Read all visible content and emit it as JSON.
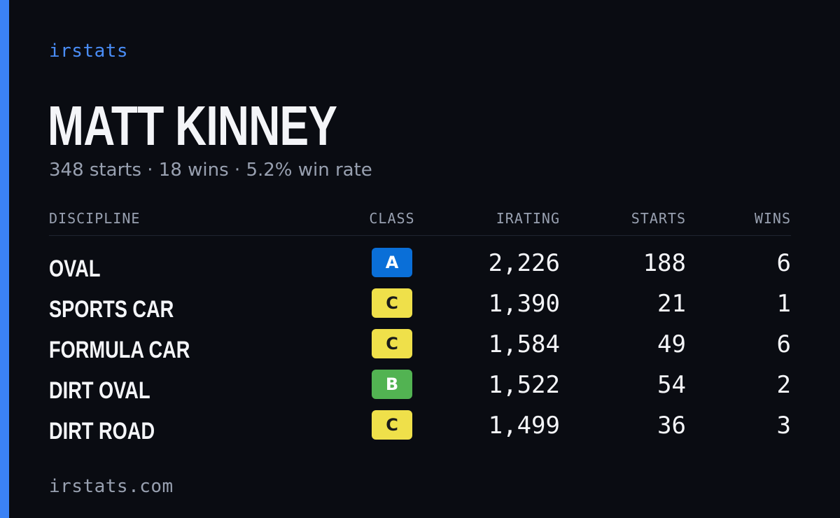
{
  "brand": "irstats",
  "driver": {
    "name": "MATT KINNEY",
    "summary": "348 starts · 18 wins · 5.2% win rate"
  },
  "table": {
    "headers": {
      "discipline": "DISCIPLINE",
      "class": "CLASS",
      "irating": "IRATING",
      "starts": "STARTS",
      "wins": "WINS"
    },
    "rows": [
      {
        "discipline": "OVAL",
        "class": "A",
        "irating": "2,226",
        "starts": "188",
        "wins": "6"
      },
      {
        "discipline": "SPORTS CAR",
        "class": "C",
        "irating": "1,390",
        "starts": "21",
        "wins": "1"
      },
      {
        "discipline": "FORMULA CAR",
        "class": "C",
        "irating": "1,584",
        "starts": "49",
        "wins": "6"
      },
      {
        "discipline": "DIRT OVAL",
        "class": "B",
        "irating": "1,522",
        "starts": "54",
        "wins": "2"
      },
      {
        "discipline": "DIRT ROAD",
        "class": "C",
        "irating": "1,499",
        "starts": "36",
        "wins": "3"
      }
    ]
  },
  "class_colors": {
    "A": {
      "bg": "#0a6fd8",
      "fg": "#ffffff"
    },
    "B": {
      "bg": "#52b352",
      "fg": "#ffffff"
    },
    "C": {
      "bg": "#efe04a",
      "fg": "#1a1a1a"
    }
  },
  "colors": {
    "accent": "#3b82f6",
    "background": "#0a0c12",
    "muted": "#98a0b0"
  },
  "footer": "irstats.com"
}
